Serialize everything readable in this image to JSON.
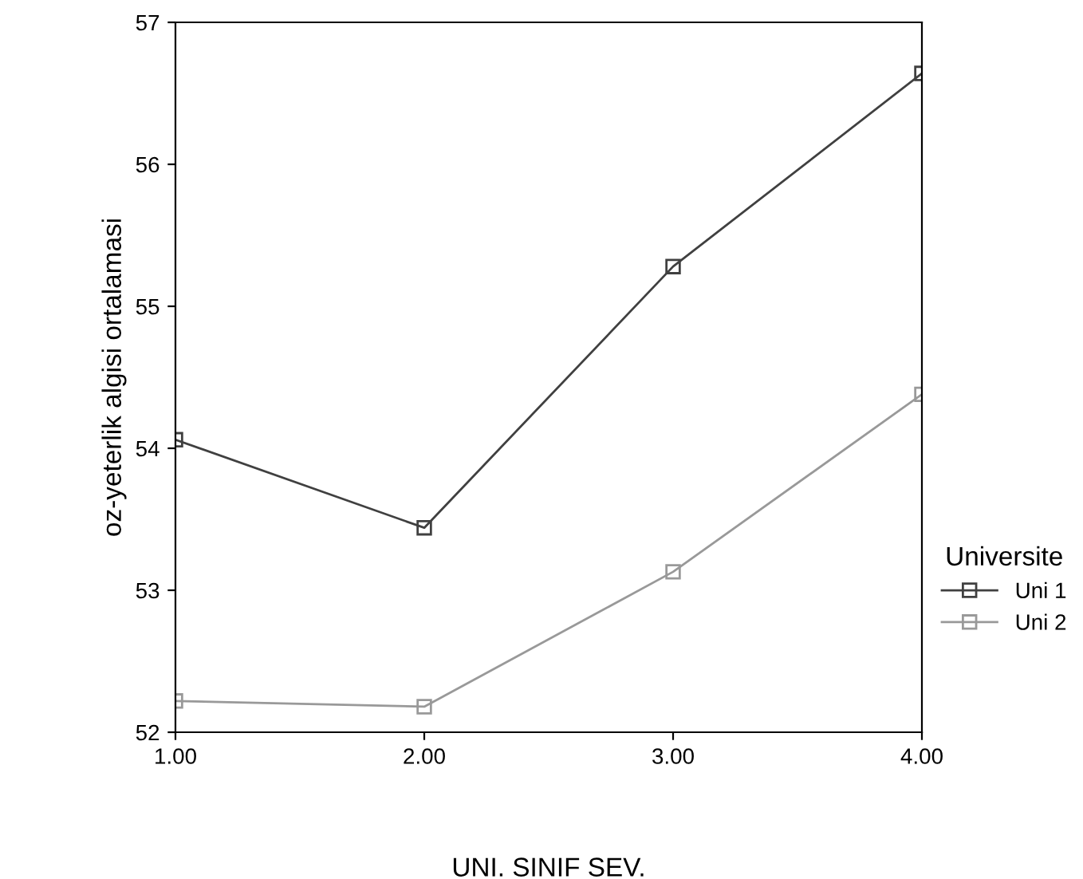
{
  "chart_data": {
    "type": "line",
    "xlabel": "UNI. SINIF SEV.",
    "ylabel": "oz-yeterlik algisi ortalamasi",
    "legend_title": "Universite",
    "x": [
      1,
      2,
      3,
      4
    ],
    "series": [
      {
        "name": "Uni 1",
        "color": "#404040",
        "values": [
          54.06,
          53.44,
          55.28,
          56.64
        ]
      },
      {
        "name": "Uni 2",
        "color": "#999999",
        "values": [
          52.22,
          52.18,
          53.13,
          54.38
        ]
      }
    ],
    "xlim": [
      1,
      4
    ],
    "xticks": [
      {
        "value": 1,
        "label": "1.00"
      },
      {
        "value": 2,
        "label": "2.00"
      },
      {
        "value": 3,
        "label": "3.00"
      },
      {
        "value": 4,
        "label": "4.00"
      }
    ],
    "ylim": [
      52,
      57
    ],
    "yticks": [
      52,
      53,
      54,
      55,
      56,
      57
    ],
    "marker": "square",
    "line_style": "solid",
    "grid": false,
    "legend": "right"
  }
}
